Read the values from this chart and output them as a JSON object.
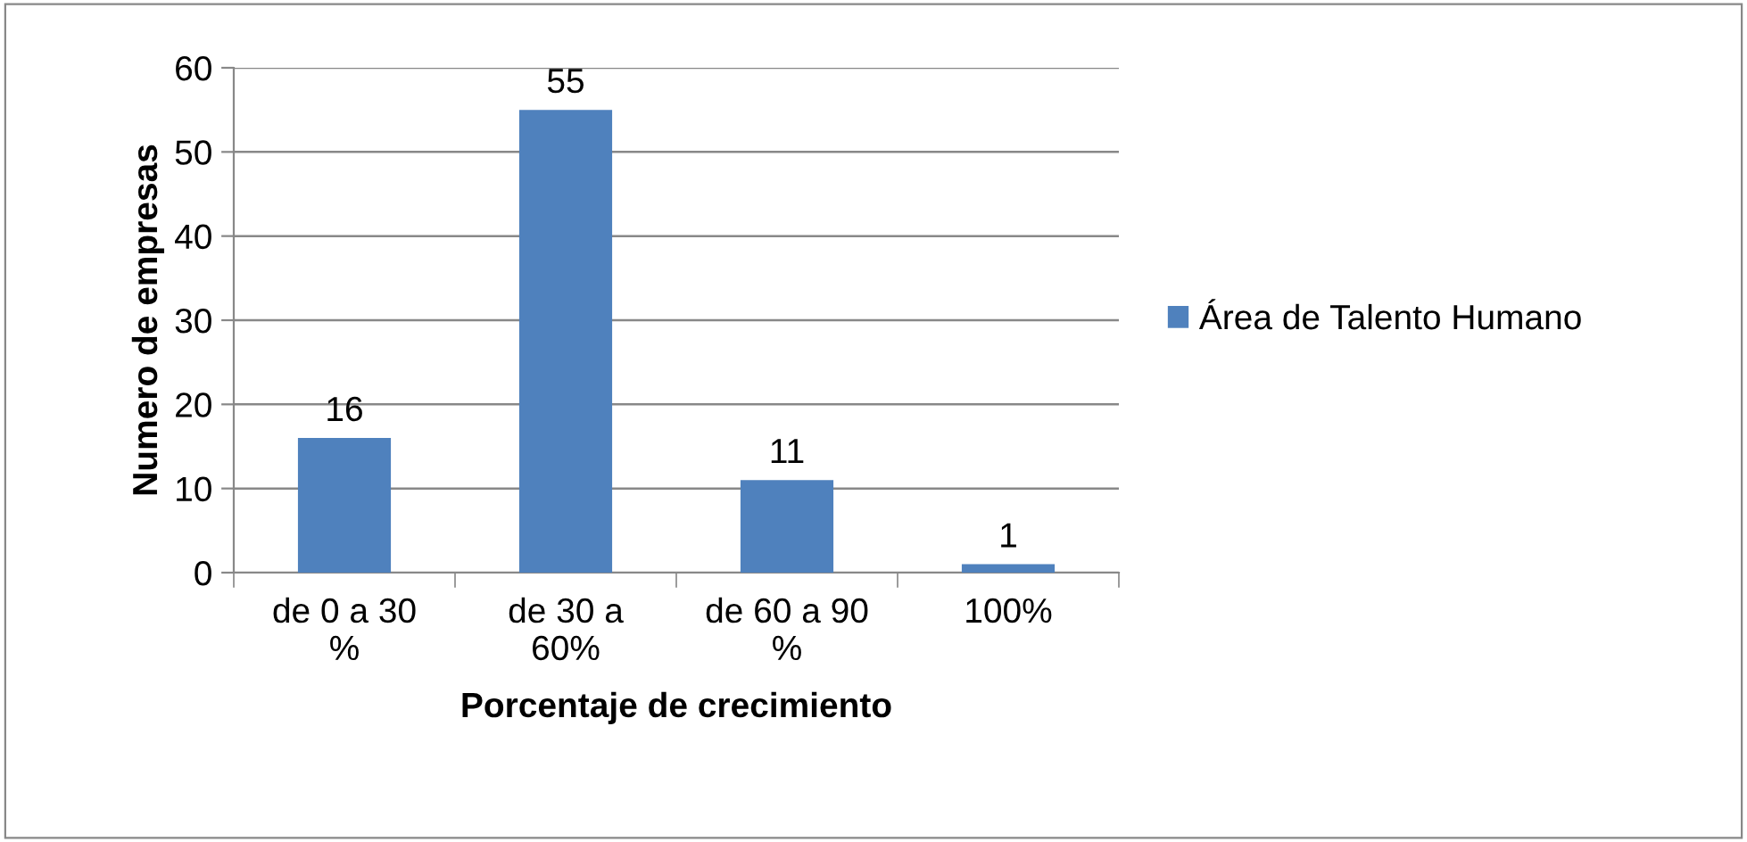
{
  "chart_data": {
    "type": "bar",
    "xlabel": "Porcentaje de crecimiento",
    "ylabel": "Numero de empresas",
    "categories": [
      "de 0 a 30\n%",
      "de 30 a\n60%",
      "de 60 a 90\n%",
      "100%"
    ],
    "series": [
      {
        "name": "Área de Talento Humano",
        "color": "#4f81bd",
        "values": [
          16,
          55,
          11,
          1
        ]
      }
    ],
    "ylim": [
      0,
      60
    ],
    "yticks": [
      0,
      10,
      20,
      30,
      40,
      50,
      60
    ],
    "grid": "y",
    "legend": "right",
    "data_labels": true
  }
}
